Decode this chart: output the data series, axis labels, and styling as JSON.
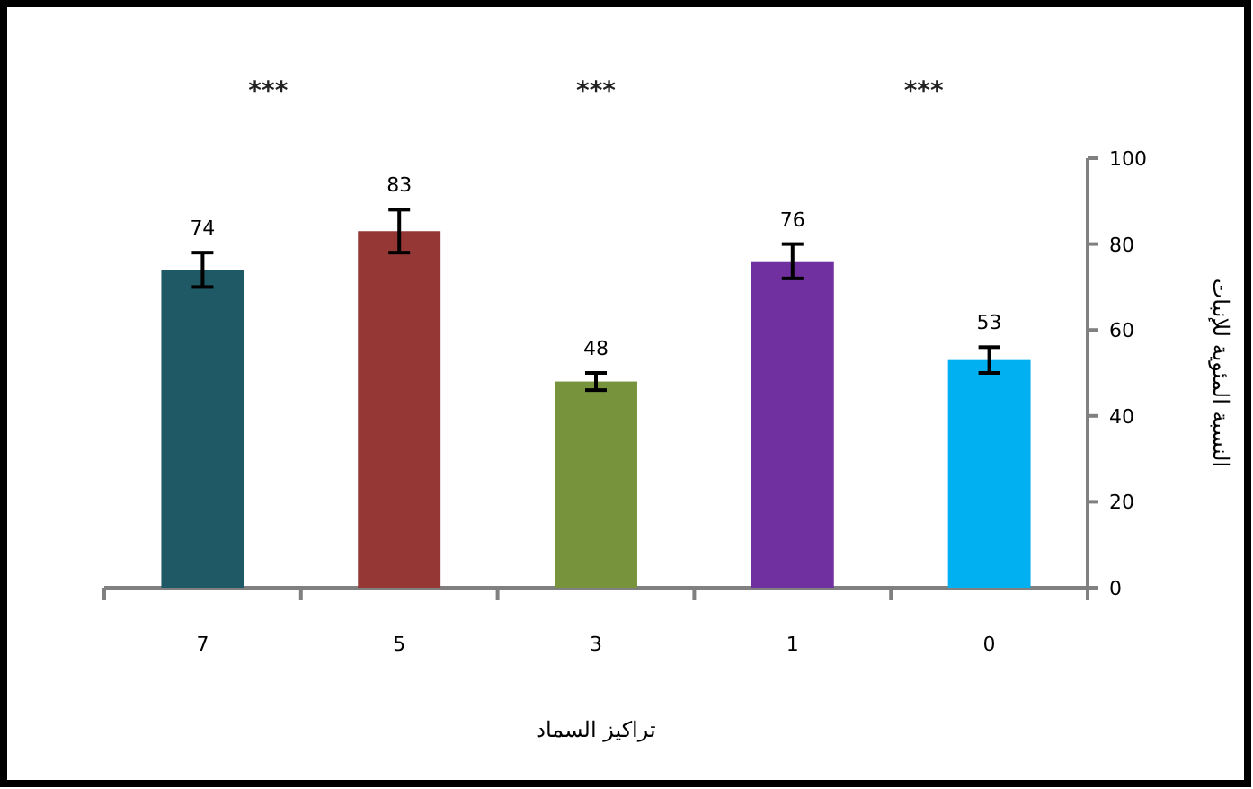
{
  "chart_data": {
    "type": "bar",
    "xlabel": "تراكيز السماد",
    "ylabel": "النسبة المئوية للإنبات",
    "categories": [
      "7",
      "5",
      "3",
      "1",
      "0"
    ],
    "values": [
      74,
      83,
      48,
      76,
      53
    ],
    "errors": [
      4,
      5,
      2,
      4,
      3
    ],
    "colors": [
      "#1f5966",
      "#953735",
      "#77933c",
      "#7030a0",
      "#00b0f0"
    ],
    "ylim": [
      0,
      100
    ],
    "yticks": [
      0,
      20,
      40,
      60,
      80,
      100
    ],
    "data_labels": true,
    "grid": false,
    "annotations": [
      "***",
      "***",
      "***"
    ]
  }
}
